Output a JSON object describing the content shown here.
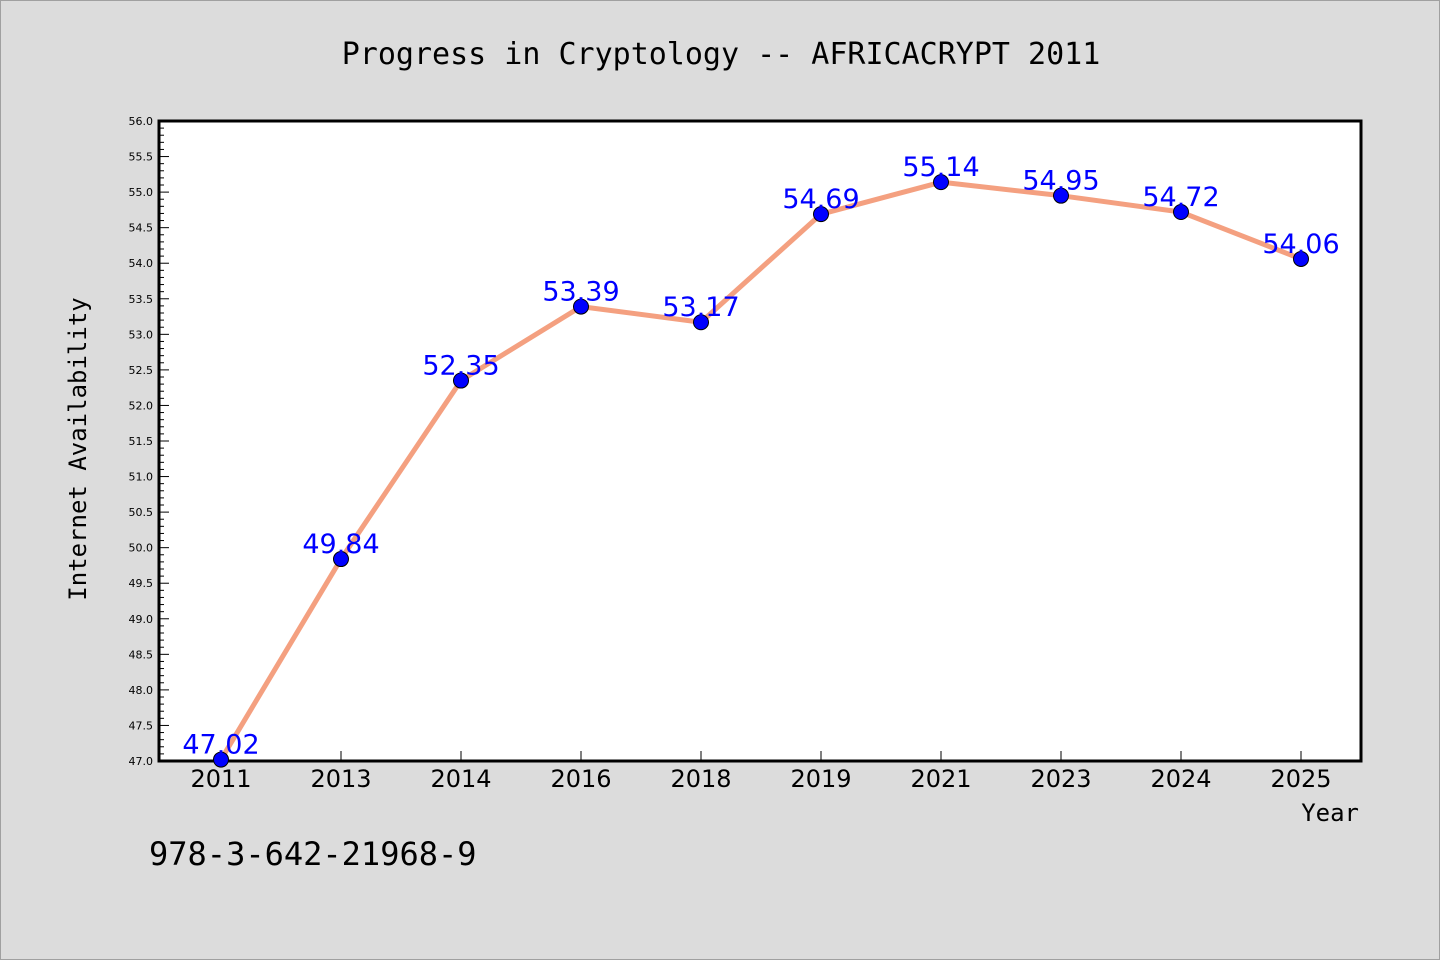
{
  "chart_data": {
    "type": "line",
    "title": "Progress in Cryptology -- AFRICACRYPT 2011",
    "xlabel": "Year",
    "ylabel": "Internet Availability",
    "categories": [
      "2011",
      "2013",
      "2014",
      "2016",
      "2018",
      "2019",
      "2021",
      "2023",
      "2024",
      "2025"
    ],
    "series": [
      {
        "values": [
          47.02,
          49.84,
          52.35,
          53.39,
          53.17,
          54.69,
          55.14,
          54.95,
          54.72,
          54.06
        ]
      }
    ],
    "data_labels": [
      "47.02",
      "49.84",
      "52.35",
      "53.39",
      "53.17",
      "54.69",
      "55.14",
      "54.95",
      "54.72",
      "54.06"
    ],
    "ylim": [
      47.0,
      56.0
    ],
    "yticks": [
      "47.0",
      "47.5",
      "48.0",
      "48.5",
      "49.0",
      "49.5",
      "50.0",
      "50.5",
      "51.0",
      "51.5",
      "52.0",
      "52.5",
      "53.0",
      "53.5",
      "54.0",
      "54.5",
      "55.0",
      "55.5",
      "56.0"
    ],
    "grid": false,
    "line_color": "#f4a080",
    "marker_color": "#0000ff",
    "label_color": "#0000ff",
    "footnote": "978-3-642-21968-9"
  }
}
